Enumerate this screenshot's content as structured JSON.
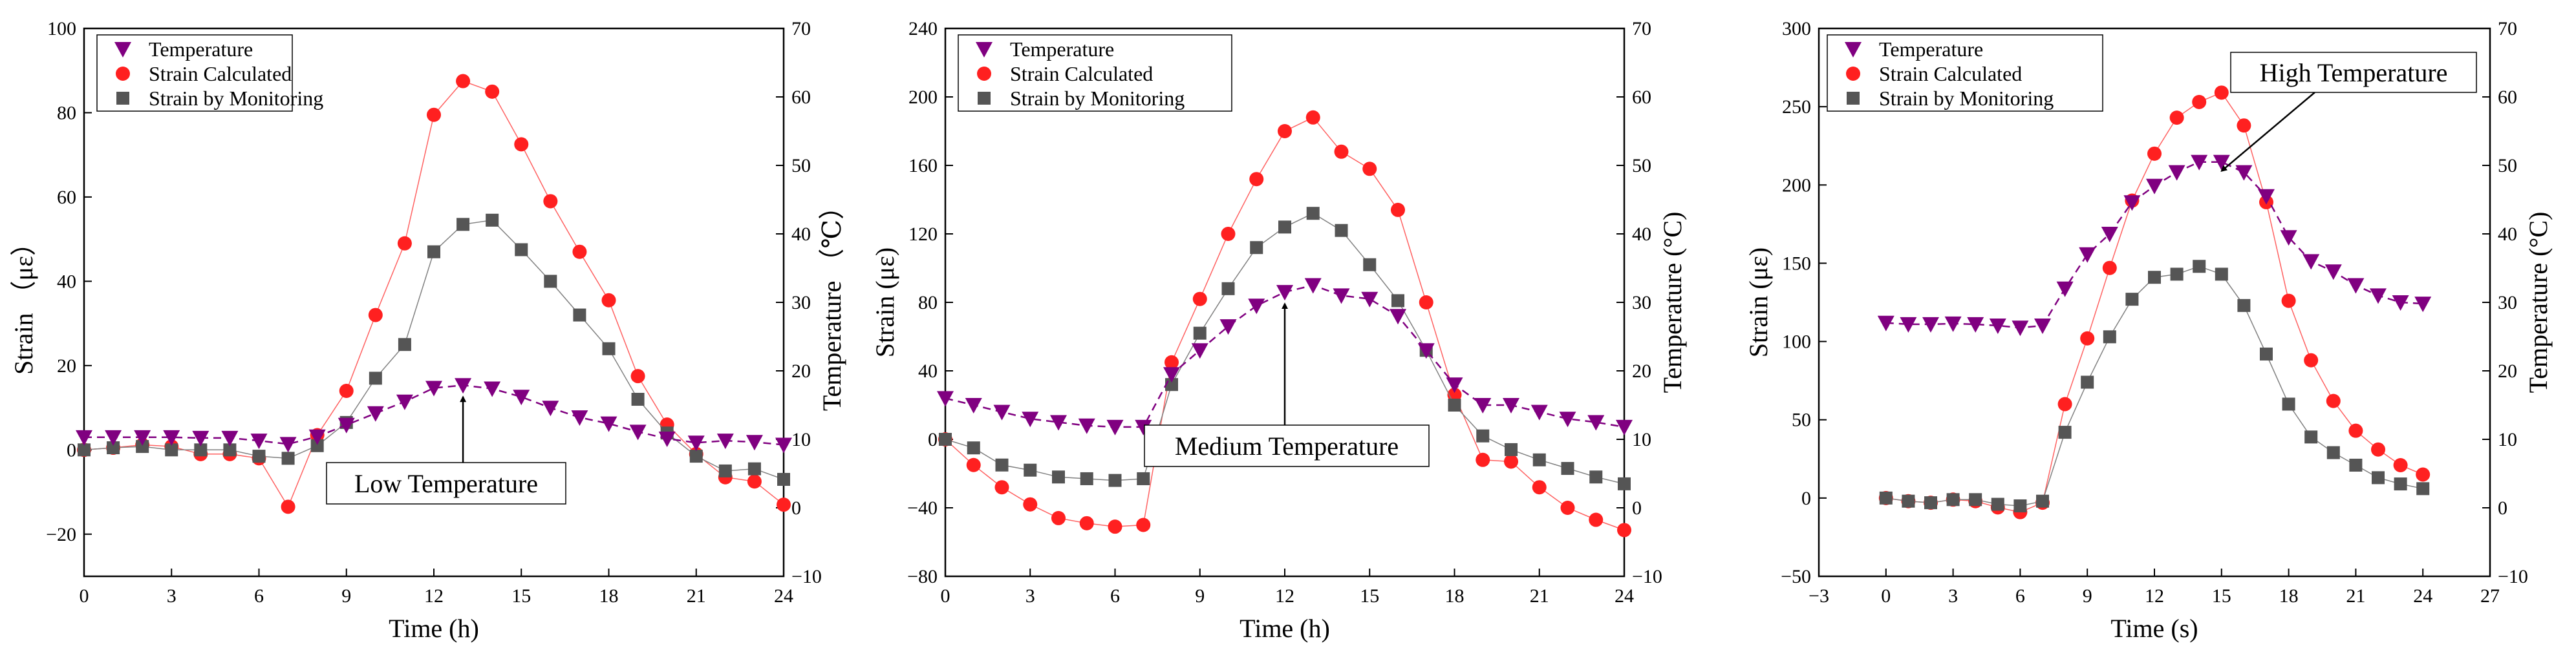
{
  "colors": {
    "temperature": "#800080",
    "calculated": "#ff2020",
    "calculated_line": "#ff6060",
    "monitoring": "#555555",
    "monitoring_line": "#808080"
  },
  "legend": [
    "Temperature",
    "Strain Calculated",
    "Strain by Monitoring"
  ],
  "chart_data": [
    {
      "type": "scatter",
      "annotation": "Low Temperature",
      "xlabel": "Time (h)",
      "ylabel": "Strain （με）",
      "y2label": "Temperature （℃）",
      "xlim": [
        0,
        24
      ],
      "ylim": [
        -30,
        100
      ],
      "y2lim": [
        -10,
        70
      ],
      "xticks": [
        "0",
        "3",
        "6",
        "9",
        "12",
        "15",
        "18",
        "21",
        "24"
      ],
      "yticks": [
        "-20",
        "0",
        "20",
        "40",
        "60",
        "80",
        "100"
      ],
      "y2ticks": [
        "-10",
        "0",
        "10",
        "20",
        "30",
        "40",
        "50",
        "60",
        "70"
      ],
      "x": [
        0,
        1,
        2,
        3,
        4,
        5,
        6,
        7,
        8,
        9,
        10,
        11,
        12,
        13,
        14,
        15,
        16,
        17,
        18,
        19,
        20,
        21,
        22,
        23,
        24
      ],
      "series": [
        {
          "name": "Temperature",
          "axis": "right",
          "values": [
            10.3,
            10.3,
            10.3,
            10.3,
            10.2,
            10.2,
            9.8,
            9.3,
            10.4,
            12.1,
            13.8,
            15.5,
            17.5,
            17.9,
            17.4,
            16.2,
            14.6,
            13.2,
            12.3,
            11.1,
            10.1,
            9.5,
            9.8,
            9.6,
            9.2
          ]
        },
        {
          "name": "Strain Calculated",
          "axis": "left",
          "values": [
            0,
            0.5,
            1.2,
            0.8,
            -1,
            -1,
            -2,
            -13.5,
            3.5,
            14,
            32,
            49,
            79.5,
            87.5,
            85,
            72.5,
            59,
            47,
            35.5,
            17.5,
            6,
            -1,
            -6.5,
            -7.5,
            -13
          ]
        },
        {
          "name": "Strain by Monitoring",
          "axis": "left",
          "values": [
            0,
            0.5,
            0.8,
            0,
            0,
            0,
            -1.5,
            -2,
            1,
            6.5,
            17,
            25,
            47,
            53.5,
            54.5,
            47.5,
            40,
            32,
            24,
            12,
            4,
            -1.5,
            -5,
            -4.5,
            -7
          ]
        }
      ]
    },
    {
      "type": "scatter",
      "annotation": "Medium Temperature",
      "xlabel": "Time (h)",
      "ylabel": "Strain (με)",
      "y2label": "Temperature (°C)",
      "xlim": [
        0,
        24
      ],
      "ylim": [
        -80,
        240
      ],
      "y2lim": [
        -10,
        70
      ],
      "xticks": [
        "0",
        "3",
        "6",
        "9",
        "12",
        "15",
        "18",
        "21",
        "24"
      ],
      "yticks": [
        "-80",
        "-40",
        "0",
        "40",
        "80",
        "120",
        "160",
        "200",
        "240"
      ],
      "y2ticks": [
        "-10",
        "0",
        "10",
        "20",
        "30",
        "40",
        "50",
        "60",
        "70"
      ],
      "x": [
        0,
        1,
        2,
        3,
        4,
        5,
        6,
        7,
        8,
        9,
        10,
        11,
        12,
        13,
        14,
        15,
        16,
        17,
        18,
        19,
        20,
        21,
        22,
        23,
        24
      ],
      "series": [
        {
          "name": "Temperature",
          "axis": "right",
          "values": [
            16,
            15,
            14,
            13,
            12.5,
            12,
            11.8,
            11.8,
            19.5,
            23,
            26.5,
            29.5,
            31.5,
            32.5,
            31,
            30.5,
            28,
            23,
            18,
            15,
            15,
            14,
            13,
            12.5,
            11.8
          ]
        },
        {
          "name": "Strain Calculated",
          "axis": "left",
          "values": [
            0,
            -15,
            -28,
            -38,
            -46,
            -49,
            -51,
            -50,
            45,
            82,
            120,
            152,
            180,
            188,
            168,
            158,
            134,
            80,
            26,
            -12,
            -13,
            -28,
            -40,
            -47,
            -53
          ]
        },
        {
          "name": "Strain by Monitoring",
          "axis": "left",
          "values": [
            0,
            -5,
            -15,
            -18,
            -22,
            -23,
            -24,
            -23,
            32,
            62,
            88,
            112,
            124,
            132,
            122,
            102,
            81,
            52,
            20,
            2,
            -6,
            -12,
            -17,
            -22,
            -26
          ]
        }
      ]
    },
    {
      "type": "scatter",
      "annotation": "High Temperature",
      "xlabel": "Time (s)",
      "ylabel": "Strain (με)",
      "y2label": "Temperature (°C)",
      "xlim": [
        -3,
        27
      ],
      "ylim": [
        -50,
        300
      ],
      "y2lim": [
        -10,
        70
      ],
      "xticks": [
        "−3",
        "0",
        "3",
        "6",
        "9",
        "12",
        "15",
        "18",
        "21",
        "24",
        "27"
      ],
      "yticks": [
        "-50",
        "0",
        "50",
        "100",
        "150",
        "200",
        "250",
        "300"
      ],
      "y2ticks": [
        "-10",
        "0",
        "10",
        "20",
        "30",
        "40",
        "50",
        "60",
        "70"
      ],
      "x": [
        0,
        1,
        2,
        3,
        4,
        5,
        6,
        7,
        8,
        9,
        10,
        11,
        12,
        13,
        14,
        15,
        16,
        17,
        18,
        19,
        20,
        21,
        22,
        23,
        24
      ],
      "series": [
        {
          "name": "Temperature",
          "axis": "right",
          "values": [
            27,
            26.8,
            26.8,
            26.9,
            26.8,
            26.6,
            26.3,
            26.6,
            32,
            37,
            40,
            44.6,
            47,
            49,
            50.5,
            50.5,
            49,
            45.5,
            39.5,
            36,
            34.5,
            32.5,
            31,
            30,
            29.8
          ]
        },
        {
          "name": "Strain Calculated",
          "axis": "left",
          "values": [
            0,
            -2,
            -3,
            -1,
            -2,
            -6,
            -9,
            -3,
            60,
            102,
            147,
            190,
            220,
            243,
            253,
            259,
            238,
            189,
            126,
            88,
            62,
            43,
            31,
            21,
            15
          ]
        },
        {
          "name": "Strain by Monitoring",
          "axis": "left",
          "values": [
            0,
            -2,
            -3,
            -1,
            -1,
            -4,
            -5,
            -2,
            42,
            74,
            103,
            127,
            141,
            143,
            148,
            143,
            123,
            92,
            60,
            39,
            29,
            21,
            13,
            9,
            6
          ]
        }
      ]
    }
  ]
}
